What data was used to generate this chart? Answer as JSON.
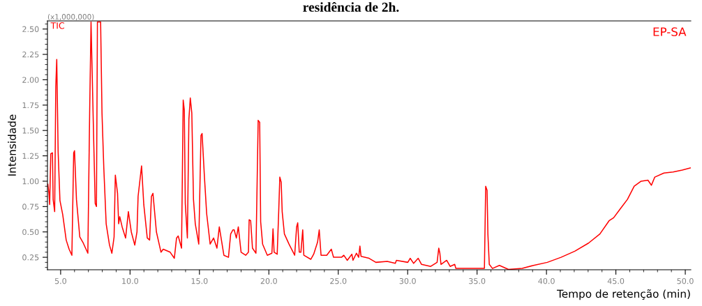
{
  "chart_data": {
    "type": "line",
    "title": "residência de 2h.",
    "xlabel": "Tempo de retenção (min)",
    "ylabel": "Intensidade",
    "annotations": [
      "(x1,000,000)",
      "TIC",
      "EP-SA"
    ],
    "series": [
      {
        "color": "#ff0000",
        "x": [
          4.08,
          4.16,
          4.21,
          4.29,
          4.41,
          4.46,
          4.57,
          4.65,
          4.72,
          4.82,
          4.95,
          5.15,
          5.4,
          5.61,
          5.81,
          5.94,
          6.0,
          6.14,
          6.38,
          6.63,
          6.96,
          7.09,
          7.19,
          7.37,
          7.49,
          7.58,
          7.65,
          7.88,
          7.98,
          8.11,
          8.28,
          8.52,
          8.69,
          8.85,
          8.94,
          9.1,
          9.18,
          9.26,
          9.43,
          9.68,
          9.88,
          10.09,
          10.34,
          10.5,
          10.58,
          10.83,
          10.99,
          11.24,
          11.41,
          11.54,
          11.65,
          11.9,
          12.23,
          12.39,
          12.89,
          13.19,
          13.35,
          13.47,
          13.71,
          13.83,
          13.91,
          13.98,
          14.13,
          14.24,
          14.34,
          14.45,
          14.57,
          14.7,
          14.95,
          15.11,
          15.19,
          15.36,
          15.52,
          15.77,
          16.02,
          16.26,
          16.43,
          16.76,
          17.09,
          17.25,
          17.41,
          17.5,
          17.66,
          17.8,
          18.0,
          18.33,
          18.53,
          18.58,
          18.69,
          18.82,
          19.07,
          19.23,
          19.34,
          19.41,
          19.55,
          19.89,
          20.22,
          20.3,
          20.38,
          20.6,
          20.71,
          20.79,
          20.89,
          20.96,
          21.12,
          21.45,
          21.86,
          22.0,
          22.08,
          22.19,
          22.31,
          22.44,
          22.52,
          23.02,
          23.23,
          23.51,
          23.63,
          23.76,
          24.17,
          24.5,
          24.66,
          25.24,
          25.4,
          25.65,
          25.98,
          26.06,
          26.31,
          26.47,
          26.56,
          26.64,
          27.22,
          27.71,
          28.53,
          29.11,
          29.19,
          30.01,
          30.18,
          30.43,
          30.76,
          31.0,
          31.66,
          32.12,
          32.24,
          32.32,
          32.4,
          32.81,
          33.06,
          33.39,
          33.47,
          34.96,
          35.53,
          35.62,
          35.72,
          35.78,
          35.88,
          36.11,
          36.61,
          37.26,
          38.25,
          39.07,
          40.06,
          41.05,
          42.04,
          43.03,
          43.85,
          44.51,
          44.84,
          45.33,
          45.83,
          46.32,
          46.82,
          47.31,
          47.56,
          47.8,
          48.46,
          49.12,
          49.78,
          50.36
        ],
        "values": [
          0.97,
          0.88,
          0.77,
          1.27,
          1.28,
          0.82,
          0.7,
          1.93,
          2.2,
          1.29,
          0.81,
          0.67,
          0.42,
          0.33,
          0.27,
          1.28,
          1.3,
          0.82,
          0.45,
          0.39,
          0.29,
          1.67,
          2.57,
          1.47,
          0.78,
          0.75,
          2.57,
          2.57,
          1.67,
          1.13,
          0.58,
          0.37,
          0.29,
          0.45,
          1.06,
          0.88,
          0.58,
          0.65,
          0.55,
          0.44,
          0.7,
          0.5,
          0.37,
          0.5,
          0.85,
          1.15,
          0.77,
          0.44,
          0.42,
          0.85,
          0.88,
          0.5,
          0.3,
          0.33,
          0.3,
          0.24,
          0.44,
          0.46,
          0.34,
          1.8,
          1.7,
          0.78,
          0.44,
          1.61,
          1.82,
          1.67,
          0.82,
          0.58,
          0.38,
          1.45,
          1.47,
          1.04,
          0.68,
          0.38,
          0.44,
          0.34,
          0.55,
          0.27,
          0.25,
          0.48,
          0.52,
          0.52,
          0.44,
          0.55,
          0.3,
          0.27,
          0.3,
          0.62,
          0.61,
          0.34,
          0.29,
          1.6,
          1.58,
          0.6,
          0.38,
          0.27,
          0.29,
          0.53,
          0.3,
          0.28,
          0.7,
          1.04,
          0.99,
          0.7,
          0.48,
          0.38,
          0.27,
          0.55,
          0.59,
          0.3,
          0.3,
          0.52,
          0.27,
          0.23,
          0.28,
          0.4,
          0.52,
          0.27,
          0.27,
          0.33,
          0.25,
          0.25,
          0.27,
          0.22,
          0.28,
          0.22,
          0.29,
          0.25,
          0.36,
          0.26,
          0.24,
          0.2,
          0.21,
          0.19,
          0.22,
          0.2,
          0.24,
          0.19,
          0.24,
          0.18,
          0.16,
          0.2,
          0.34,
          0.29,
          0.18,
          0.22,
          0.16,
          0.18,
          0.14,
          0.14,
          0.14,
          0.95,
          0.91,
          0.48,
          0.18,
          0.14,
          0.17,
          0.13,
          0.14,
          0.17,
          0.2,
          0.25,
          0.31,
          0.39,
          0.48,
          0.61,
          0.64,
          0.73,
          0.82,
          0.95,
          1.0,
          1.01,
          0.96,
          1.04,
          1.08,
          1.09,
          1.11,
          1.13
        ]
      }
    ],
    "xlim": [
      4.05,
      50.4
    ],
    "ylim": [
      0.127,
      2.58
    ],
    "xticks": [
      {
        "value": 5,
        "label": "5.0"
      },
      {
        "value": 10,
        "label": "10.0"
      },
      {
        "value": 15,
        "label": "15.0"
      },
      {
        "value": 20,
        "label": "20.0"
      },
      {
        "value": 25,
        "label": "25.0"
      },
      {
        "value": 30,
        "label": "30.0"
      },
      {
        "value": 35,
        "label": "35.0"
      },
      {
        "value": 40,
        "label": "40.0"
      },
      {
        "value": 45,
        "label": "45.0"
      },
      {
        "value": 50,
        "label": "50.0"
      }
    ],
    "yticks": [
      {
        "value": 0.25,
        "label": "0.25"
      },
      {
        "value": 0.5,
        "label": "0.50"
      },
      {
        "value": 0.75,
        "label": "0.75"
      },
      {
        "value": 1.0,
        "label": "1.00"
      },
      {
        "value": 1.25,
        "label": "1.25"
      },
      {
        "value": 1.5,
        "label": "1.50"
      },
      {
        "value": 1.75,
        "label": "1.75"
      },
      {
        "value": 2.0,
        "label": "2.00"
      },
      {
        "value": 2.25,
        "label": "2.25"
      },
      {
        "value": 2.5,
        "label": "2.50"
      }
    ],
    "grid": false,
    "legend": false
  }
}
